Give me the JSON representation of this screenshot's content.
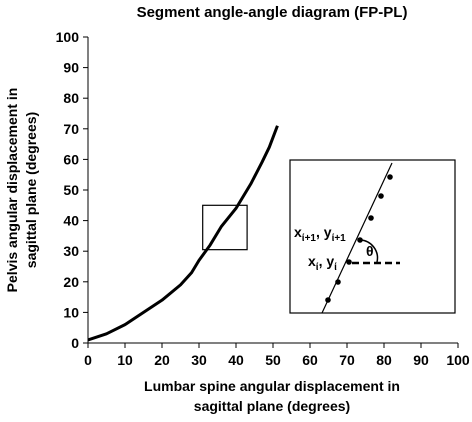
{
  "chart_data": {
    "type": "line",
    "title": "Segment angle-angle diagram (FP-PL)",
    "x_label": [
      "Lumbar spine angular displacement in",
      "sagittal plane (degrees)"
    ],
    "y_label": [
      "Pelvis angular displacement in",
      "sagittal plane (degrees)"
    ],
    "xlim": [
      0,
      100
    ],
    "ylim": [
      0,
      100
    ],
    "xticks": [
      0,
      10,
      20,
      30,
      40,
      50,
      60,
      70,
      80,
      90,
      100
    ],
    "yticks": [
      0,
      10,
      20,
      30,
      40,
      50,
      60,
      70,
      80,
      90,
      100
    ],
    "series": [
      {
        "color": "#000000",
        "x": [
          0,
          5,
          10,
          15,
          20,
          25,
          28,
          30,
          33,
          36,
          40,
          44,
          47,
          49,
          51.2
        ],
        "values": [
          1,
          3,
          6,
          10,
          14,
          19,
          23,
          27,
          32,
          38,
          44,
          52,
          59,
          64,
          71
        ]
      }
    ],
    "highlight": {
      "xlim": [
        31,
        43
      ],
      "ylim": [
        30.5,
        45
      ]
    },
    "inset": {
      "next_point": [
        "x",
        "ί+1",
        ", y",
        "ί+1"
      ],
      "point": [
        "x",
        "ί",
        ", y",
        "ί"
      ],
      "angle": "θ"
    }
  }
}
